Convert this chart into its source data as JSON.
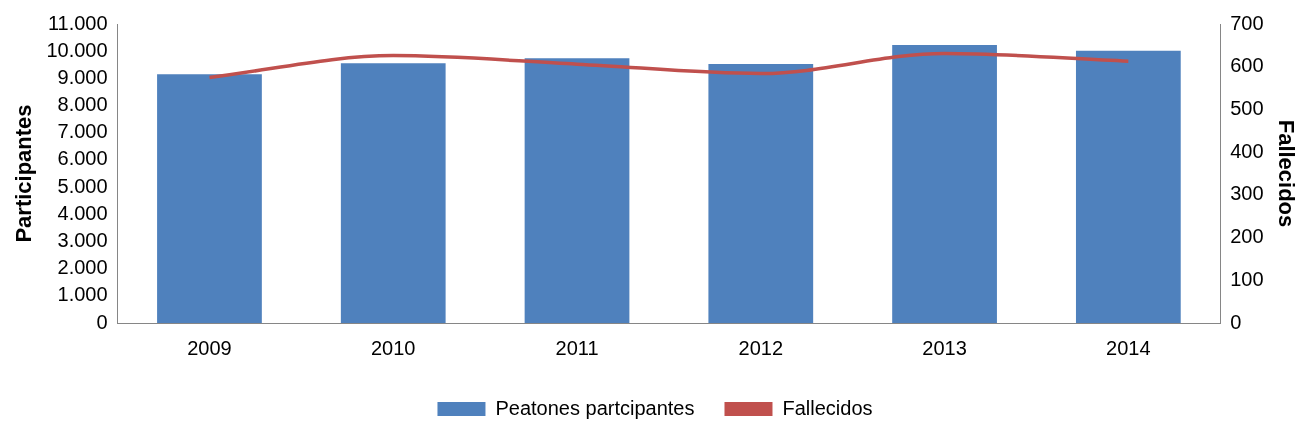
{
  "chart_data": {
    "type": "bar",
    "ylabel": "Participantes",
    "y2label": "Fallecidos",
    "categories": [
      "2009",
      "2010",
      "2011",
      "2012",
      "2013",
      "2014"
    ],
    "series": [
      {
        "name": "Peatones partcipantes",
        "color": "#4f81bd",
        "values": [
          9150,
          9560,
          9740,
          9530,
          10230,
          10020
        ]
      },
      {
        "name": "Fallecidos",
        "type": "line",
        "axis": "y2",
        "color": "#c0504d",
        "marker": "none",
        "values": [
          575,
          626,
          606,
          584,
          631,
          613
        ]
      }
    ],
    "ylim": [
      0,
      11000
    ],
    "yticks": [
      {
        "value": 0,
        "label": "0"
      },
      {
        "value": 1000,
        "label": "1.000"
      },
      {
        "value": 2000,
        "label": "2.000"
      },
      {
        "value": 3000,
        "label": "3.000"
      },
      {
        "value": 4000,
        "label": "4.000"
      },
      {
        "value": 5000,
        "label": "5.000"
      },
      {
        "value": 6000,
        "label": "6.000"
      },
      {
        "value": 7000,
        "label": "7.000"
      },
      {
        "value": 8000,
        "label": "8.000"
      },
      {
        "value": 9000,
        "label": "9.000"
      },
      {
        "value": 10000,
        "label": "10.000"
      },
      {
        "value": 11000,
        "label": "11.000"
      }
    ],
    "y2lim": [
      0,
      700
    ],
    "y2ticks": [
      0,
      100,
      200,
      300,
      400,
      500,
      600,
      700
    ],
    "grid": false,
    "legend": "bottom"
  }
}
